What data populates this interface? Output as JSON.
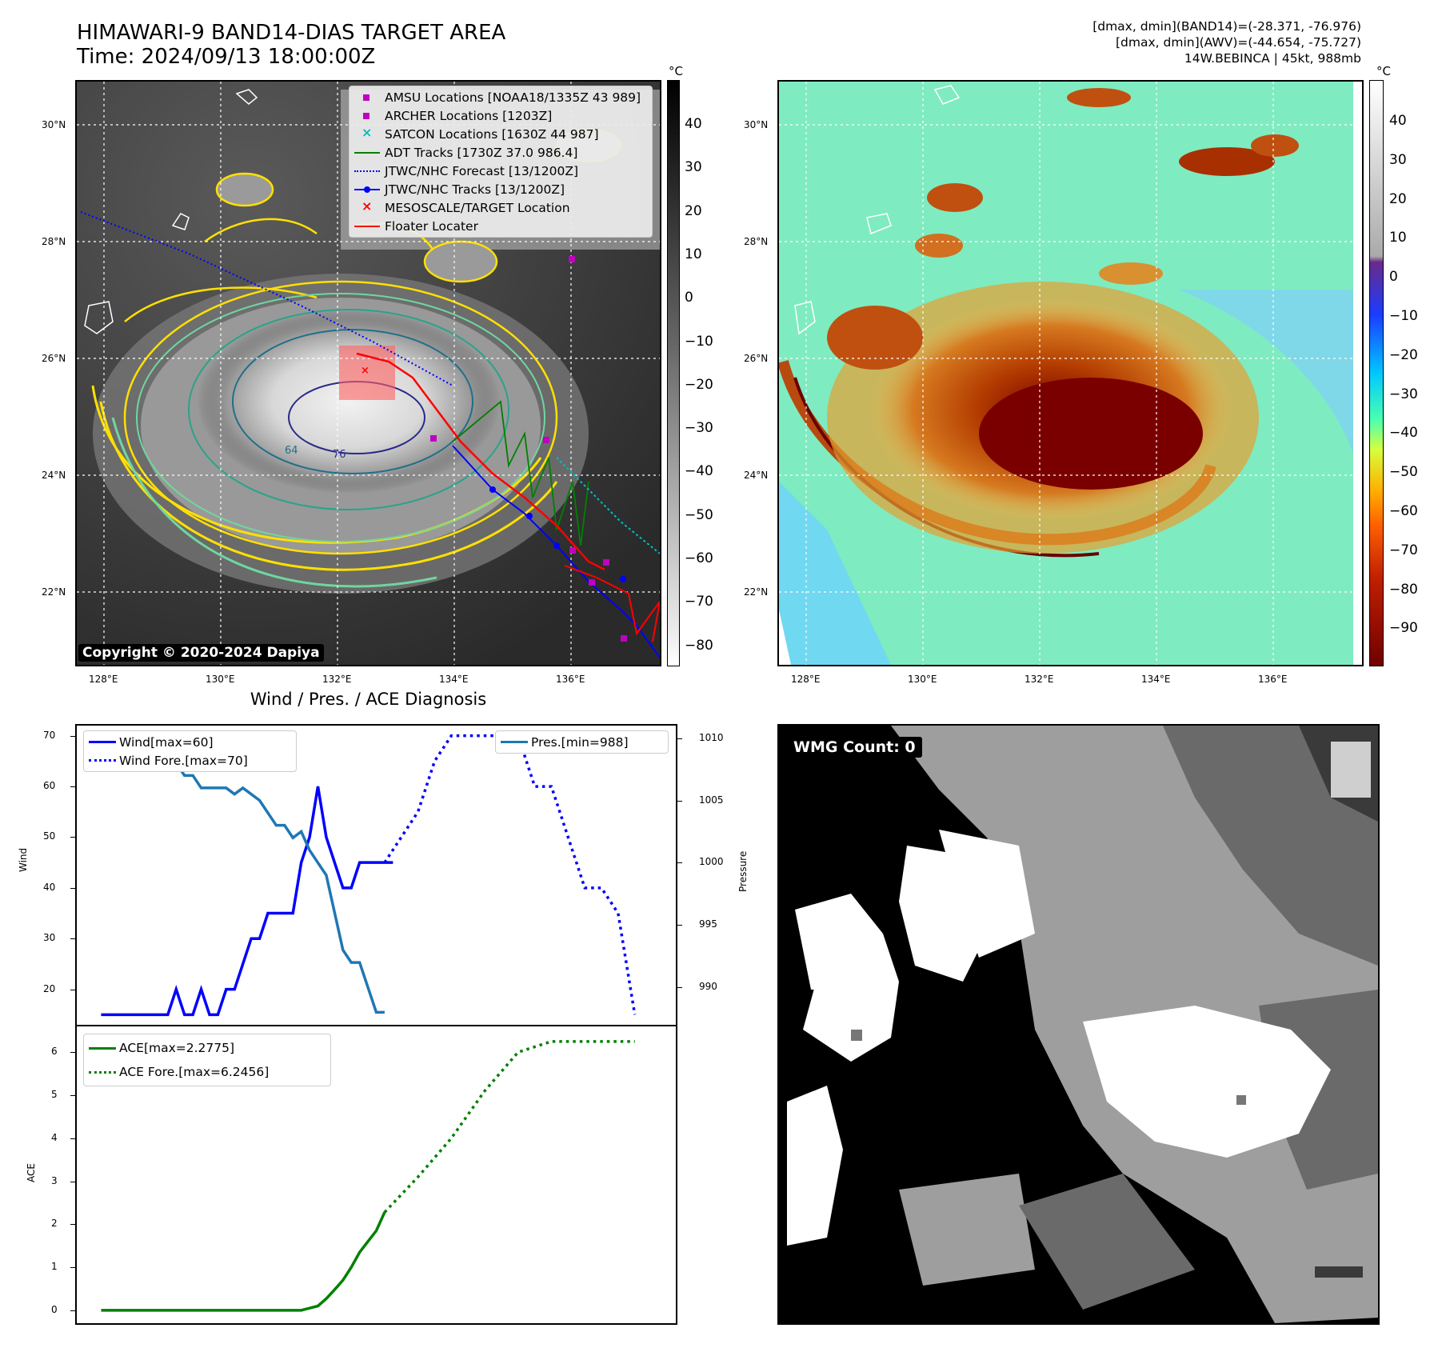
{
  "header": {
    "title_line1": "HIMAWARI-9 BAND14-DIAS TARGET AREA",
    "title_line2": "Time: 2024/09/13 18:00:00Z",
    "right_line1": "[dmax, dmin](BAND14)=(-28.371, -76.976)",
    "right_line2": "[dmax, dmin](AWV)=(-44.654, -75.727)",
    "right_line3": "14W.BEBINCA | 45kt, 988mb"
  },
  "maps": {
    "lat_ticks": [
      "30°N",
      "28°N",
      "26°N",
      "24°N",
      "22°N"
    ],
    "lon_ticks": [
      "128°E",
      "130°E",
      "132°E",
      "134°E",
      "136°E"
    ],
    "contour_labels": [
      "64",
      "76"
    ],
    "colorbar_unit": "°C",
    "ir_colorbar_ticks": [
      "40",
      "30",
      "20",
      "10",
      "0",
      "−10",
      "−20",
      "−30",
      "−40",
      "−50",
      "−60",
      "−70",
      "−80"
    ],
    "wv_colorbar_ticks": [
      "40",
      "30",
      "20",
      "10",
      "0",
      "−10",
      "−20",
      "−30",
      "−40",
      "−50",
      "−60",
      "−70",
      "−80",
      "−90"
    ],
    "copyright": "Copyright © 2020-2024 Dapiya",
    "legend": [
      {
        "label": "AMSU Locations [NOAA18/1335Z 43 989]",
        "symbol": "square",
        "color": "#c000c0"
      },
      {
        "label": "ARCHER Locations [1203Z]",
        "symbol": "square",
        "color": "#c000c0"
      },
      {
        "label": "SATCON Locations [1630Z 44 987]",
        "symbol": "x",
        "color": "#00bfbf"
      },
      {
        "label": "ADT Tracks [1730Z 37.0 986.4]",
        "symbol": "line",
        "color": "#008000"
      },
      {
        "label": "JTWC/NHC Forecast [13/1200Z]",
        "symbol": "dotted",
        "color": "#0000ff"
      },
      {
        "label": "JTWC/NHC Tracks [13/1200Z]",
        "symbol": "line-dot",
        "color": "#0000ff"
      },
      {
        "label": "MESOSCALE/TARGET Location",
        "symbol": "x",
        "color": "#ff0000"
      },
      {
        "label": "Floater Locater",
        "symbol": "line",
        "color": "#ff0000"
      }
    ]
  },
  "diag": {
    "title": "Wind / Pres. / ACE Diagnosis",
    "wind_ylabel": "Wind",
    "pres_ylabel": "Pressure",
    "ace_ylabel": "ACE",
    "wind_yticks": [
      "70",
      "60",
      "50",
      "40",
      "30",
      "20"
    ],
    "pres_yticks": [
      "1010",
      "1005",
      "1000",
      "995",
      "990"
    ],
    "ace_yticks": [
      "6",
      "5",
      "4",
      "3",
      "2",
      "1",
      "0"
    ],
    "legend_wind": "Wind[max=60]",
    "legend_wind_fore": "Wind Fore.[max=70]",
    "legend_pres": "Pres.[min=988]",
    "legend_ace": "ACE[max=2.2775]",
    "legend_ace_fore": "ACE Fore.[max=6.2456]"
  },
  "wmg": {
    "label": "WMG Count: 0"
  },
  "colors": {
    "wind": "#0000ff",
    "pressure": "#1f77b4",
    "ace": "#008000"
  },
  "chart_data": [
    {
      "type": "line",
      "title": "Wind / Pres. / ACE Diagnosis",
      "ylabel": "Wind",
      "ylim": [
        13,
        72
      ],
      "series": [
        {
          "name": "Wind[max=60]",
          "x": [
            0,
            1,
            2,
            3,
            4,
            5,
            6,
            7,
            8,
            9,
            10,
            11,
            12,
            13,
            14,
            15,
            16,
            17,
            18,
            19,
            20,
            21,
            22,
            23,
            24,
            25,
            26,
            27,
            28,
            29,
            30,
            31,
            32,
            33,
            34,
            35
          ],
          "values": [
            15,
            15,
            15,
            15,
            15,
            15,
            15,
            15,
            15,
            20,
            15,
            15,
            20,
            15,
            15,
            20,
            20,
            25,
            30,
            30,
            35,
            35,
            35,
            35,
            45,
            50,
            60,
            50,
            45,
            40,
            40,
            45,
            45,
            45,
            45,
            45
          ]
        },
        {
          "name": "Wind Fore.[max=70]",
          "x": [
            34,
            36,
            38,
            40,
            42,
            44,
            46,
            48,
            50,
            52,
            54,
            56,
            58,
            60,
            62,
            64
          ],
          "values": [
            45,
            50,
            55,
            65,
            70,
            70,
            70,
            70,
            70,
            60,
            60,
            50,
            40,
            40,
            35,
            15
          ]
        }
      ]
    },
    {
      "type": "line",
      "ylabel": "Pressure",
      "ylim": [
        987,
        1011
      ],
      "series": [
        {
          "name": "Pres.[min=988]",
          "x": [
            0,
            1,
            2,
            3,
            4,
            5,
            6,
            7,
            8,
            9,
            10,
            11,
            12,
            13,
            14,
            15,
            16,
            17,
            18,
            19,
            20,
            21,
            22,
            23,
            24,
            25,
            26,
            27,
            28,
            29,
            30,
            31,
            32,
            33,
            34
          ],
          "values": [
            1010,
            1009,
            1009,
            1009,
            1009,
            1009.5,
            1009.5,
            1008.5,
            1008.5,
            1008,
            1007,
            1007,
            1006,
            1006,
            1006,
            1006,
            1005.5,
            1006,
            1005.5,
            1005,
            1004,
            1003,
            1003,
            1002,
            1002.5,
            1001,
            1000,
            999,
            996,
            993,
            992,
            992,
            990,
            988,
            988
          ]
        }
      ]
    },
    {
      "type": "line",
      "ylabel": "ACE",
      "ylim": [
        -0.3,
        6.6
      ],
      "series": [
        {
          "name": "ACE[max=2.2775]",
          "x": [
            0,
            4,
            8,
            12,
            16,
            20,
            24,
            26,
            27,
            28,
            29,
            30,
            31,
            32,
            33,
            34
          ],
          "values": [
            0,
            0,
            0,
            0,
            0,
            0,
            0,
            0.1,
            0.27,
            0.48,
            0.7,
            1.0,
            1.35,
            1.6,
            1.85,
            2.28
          ]
        },
        {
          "name": "ACE Fore.[max=6.2456]",
          "x": [
            34,
            38,
            42,
            46,
            50,
            54,
            58,
            62,
            64
          ],
          "values": [
            2.28,
            3.1,
            4.0,
            5.1,
            6.0,
            6.25,
            6.25,
            6.25,
            6.25
          ]
        }
      ]
    }
  ]
}
